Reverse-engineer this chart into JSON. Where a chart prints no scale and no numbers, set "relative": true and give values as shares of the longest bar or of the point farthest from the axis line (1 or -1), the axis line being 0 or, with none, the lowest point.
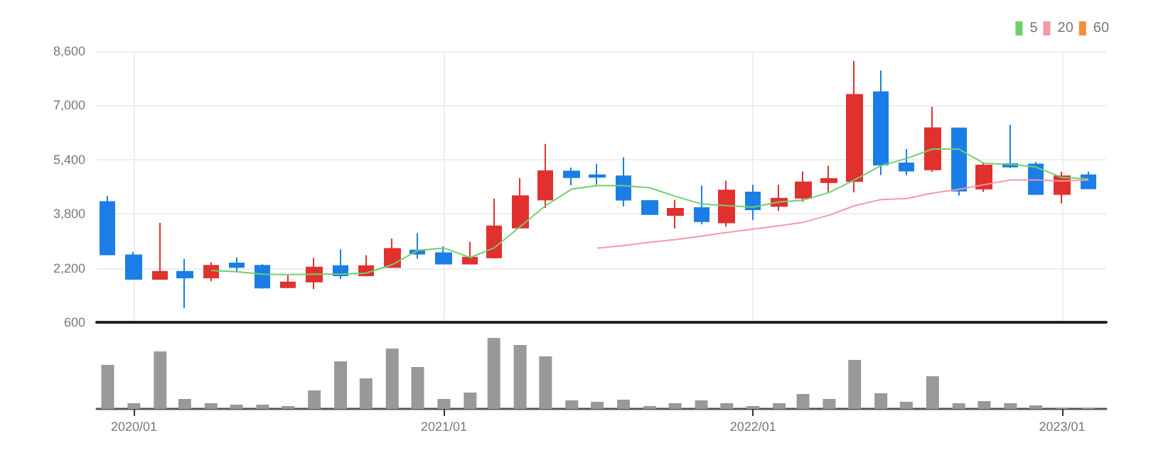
{
  "chart_data": [
    {
      "type": "candlestick",
      "x": [
        "2019-12",
        "2020-01",
        "2020-02",
        "2020-03",
        "2020-04",
        "2020-05",
        "2020-06",
        "2020-07",
        "2020-08",
        "2020-09",
        "2020-10",
        "2020-11",
        "2020-12",
        "2021-01",
        "2021-02",
        "2021-03",
        "2021-04",
        "2021-05",
        "2021-06",
        "2021-07",
        "2021-08",
        "2021-09",
        "2021-10",
        "2021-11",
        "2021-12",
        "2022-01",
        "2022-02",
        "2022-03",
        "2022-04",
        "2022-05",
        "2022-06",
        "2022-07",
        "2022-08",
        "2022-09",
        "2022-10",
        "2022-11",
        "2022-12",
        "2023-01",
        "2023-02"
      ],
      "ohlc": [
        [
          4150,
          4320,
          2600,
          2600
        ],
        [
          2580,
          2680,
          1870,
          1880
        ],
        [
          1880,
          3530,
          1850,
          2090
        ],
        [
          2090,
          2470,
          1020,
          1920
        ],
        [
          1920,
          2370,
          1810,
          2270
        ],
        [
          2340,
          2510,
          2090,
          2230
        ],
        [
          2270,
          2310,
          1590,
          1620
        ],
        [
          1630,
          1980,
          1600,
          1780
        ],
        [
          1800,
          2500,
          1580,
          2220
        ],
        [
          2260,
          2750,
          1880,
          1980
        ],
        [
          1980,
          2580,
          1950,
          2260
        ],
        [
          2230,
          3070,
          2200,
          2770
        ],
        [
          2720,
          3230,
          2480,
          2620
        ],
        [
          2640,
          2840,
          2330,
          2330
        ],
        [
          2330,
          2970,
          2300,
          2510
        ],
        [
          2510,
          4250,
          2480,
          3430
        ],
        [
          3390,
          4850,
          3370,
          4320
        ],
        [
          4220,
          5860,
          3970,
          5060
        ],
        [
          5050,
          5160,
          4640,
          4880
        ],
        [
          4940,
          5270,
          4660,
          4890
        ],
        [
          4910,
          5470,
          4020,
          4210
        ],
        [
          4180,
          4180,
          3790,
          3790
        ],
        [
          3760,
          4210,
          3370,
          3950
        ],
        [
          3970,
          4630,
          3490,
          3580
        ],
        [
          3540,
          4780,
          3420,
          4490
        ],
        [
          4430,
          4660,
          3620,
          3930
        ],
        [
          4030,
          4660,
          3890,
          4250
        ],
        [
          4270,
          5050,
          4160,
          4730
        ],
        [
          4730,
          5220,
          4450,
          4830
        ],
        [
          4760,
          8310,
          4430,
          7310
        ],
        [
          7390,
          8030,
          4940,
          5250
        ],
        [
          5290,
          5710,
          4940,
          5070
        ],
        [
          5110,
          6960,
          5040,
          6330
        ],
        [
          6320,
          6320,
          4340,
          4480
        ],
        [
          4540,
          5330,
          4450,
          5230
        ],
        [
          5270,
          6420,
          5150,
          5190
        ],
        [
          5260,
          5330,
          4380,
          4380
        ],
        [
          4380,
          5040,
          4110,
          4910
        ],
        [
          4940,
          5040,
          4520,
          4550
        ]
      ],
      "colors": [
        "#1a7ee6",
        "#1a7ee6",
        "#e0312f",
        "#1a7ee6",
        "#e0312f",
        "#1a7ee6",
        "#1a7ee6",
        "#e0312f",
        "#e0312f",
        "#1a7ee6",
        "#e0312f",
        "#e0312f",
        "#1a7ee6",
        "#1a7ee6",
        "#e0312f",
        "#e0312f",
        "#e0312f",
        "#e0312f",
        "#1a7ee6",
        "#1a7ee6",
        "#1a7ee6",
        "#1a7ee6",
        "#e0312f",
        "#1a7ee6",
        "#e0312f",
        "#1a7ee6",
        "#e0312f",
        "#e0312f",
        "#e0312f",
        "#e0312f",
        "#1a7ee6",
        "#1a7ee6",
        "#e0312f",
        "#1a7ee6",
        "#e0312f",
        "#1a7ee6",
        "#1a7ee6",
        "#e0312f",
        "#1a7ee6"
      ],
      "series": [
        {
          "name": "5",
          "type": "line",
          "color": "#6fcf6f",
          "values": [
            null,
            null,
            null,
            null,
            2130,
            2090,
            2020,
            2010,
            2020,
            2020,
            2050,
            2300,
            2720,
            2790,
            2510,
            2790,
            3420,
            4040,
            4530,
            4630,
            4630,
            4570,
            4320,
            4090,
            4040,
            4000,
            4150,
            4200,
            4430,
            4800,
            5220,
            5430,
            5710,
            5710,
            5290,
            5260,
            5180,
            4870,
            4830
          ]
        },
        {
          "name": "20",
          "type": "line",
          "color": "#f29aa4",
          "values": [
            null,
            null,
            null,
            null,
            null,
            null,
            null,
            null,
            null,
            null,
            null,
            null,
            null,
            null,
            null,
            null,
            null,
            null,
            null,
            2790,
            2860,
            2960,
            3040,
            3140,
            3250,
            3350,
            3450,
            3550,
            3760,
            4040,
            4220,
            4250,
            4410,
            4520,
            4660,
            4800,
            4800,
            4770,
            4800
          ]
        },
        {
          "name": "60",
          "type": "line",
          "color": "#f0903a",
          "values": [
            null,
            null,
            null,
            null,
            null,
            null,
            null,
            null,
            null,
            null,
            null,
            null,
            null,
            null,
            null,
            null,
            null,
            null,
            null,
            null,
            null,
            null,
            null,
            null,
            null,
            null,
            null,
            null,
            null,
            null,
            null,
            null,
            null,
            null,
            null,
            null,
            null,
            null,
            null
          ]
        }
      ],
      "xlim": [
        "2019-11-18",
        "2023-02-22"
      ],
      "xticks": [
        {
          "value": "2020-01",
          "label": null
        },
        {
          "value": "2021-01",
          "label": null
        },
        {
          "value": "2022-01",
          "label": null
        },
        {
          "value": "2023-01",
          "label": null
        }
      ],
      "ylim": [
        600,
        8600
      ],
      "yticks": [
        {
          "value": 600,
          "label": "600"
        },
        {
          "value": 2200,
          "label": "2,200"
        },
        {
          "value": 3800,
          "label": "3,800"
        },
        {
          "value": 5400,
          "label": "5,400"
        },
        {
          "value": 7000,
          "label": "7,000"
        },
        {
          "value": 8600,
          "label": "8,600"
        }
      ],
      "grid": true,
      "legend": "top right",
      "tick_labels": "y"
    },
    {
      "type": "bar",
      "relative": true,
      "x": [
        "2019-12",
        "2020-01",
        "2020-02",
        "2020-03",
        "2020-04",
        "2020-05",
        "2020-06",
        "2020-07",
        "2020-08",
        "2020-09",
        "2020-10",
        "2020-11",
        "2020-12",
        "2021-01",
        "2021-02",
        "2021-03",
        "2021-04",
        "2021-05",
        "2021-06",
        "2021-07",
        "2021-08",
        "2021-09",
        "2021-10",
        "2021-11",
        "2021-12",
        "2022-01",
        "2022-02",
        "2022-03",
        "2022-04",
        "2022-05",
        "2022-06",
        "2022-07",
        "2022-08",
        "2022-09",
        "2022-10",
        "2022-11",
        "2022-12",
        "2023-01",
        "2023-02"
      ],
      "values": [
        0.62,
        0.08,
        0.81,
        0.14,
        0.08,
        0.06,
        0.06,
        0.04,
        0.26,
        0.67,
        0.43,
        0.85,
        0.59,
        0.14,
        0.23,
        1,
        0.9,
        0.74,
        0.12,
        0.1,
        0.13,
        0.04,
        0.08,
        0.12,
        0.08,
        0.04,
        0.08,
        0.21,
        0.14,
        0.69,
        0.22,
        0.1,
        0.46,
        0.08,
        0.11,
        0.08,
        0.05,
        0.02,
        0.01
      ],
      "color": "#999999",
      "xlim": [
        "2019-11-18",
        "2023-02-22"
      ],
      "xticks": [
        {
          "value": "2020-01",
          "label": "2020/01"
        },
        {
          "value": "2021-01",
          "label": "2021/01"
        },
        {
          "value": "2022-01",
          "label": "2022/01"
        },
        {
          "value": "2023-01",
          "label": "2023/01"
        }
      ],
      "tick_labels": "x"
    }
  ]
}
